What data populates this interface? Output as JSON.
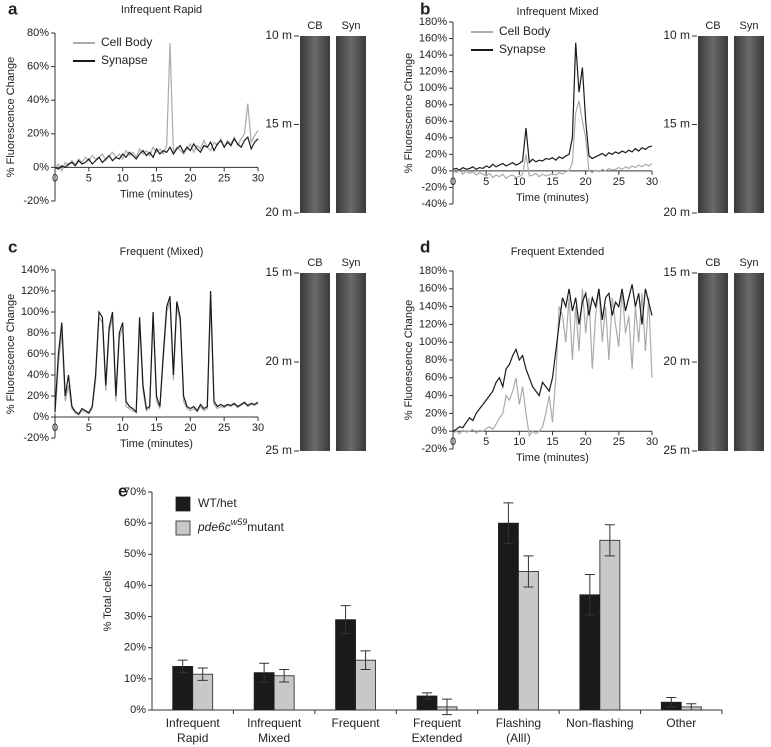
{
  "chart_data": [
    {
      "type": "line",
      "panel_label": "a",
      "title": "Infrequent Rapid",
      "y_label": "% Fluorescence Change",
      "x_label": "Time (minutes)",
      "x": [
        0,
        0.5,
        1,
        1.5,
        2,
        2.5,
        3,
        3.5,
        4,
        4.5,
        5,
        5.5,
        6,
        6.5,
        7,
        7.5,
        8,
        8.5,
        9,
        9.5,
        10,
        10.5,
        11,
        11.5,
        12,
        12.5,
        13,
        13.5,
        14,
        14.5,
        15,
        15.5,
        16,
        16.5,
        17,
        17.5,
        18,
        18.5,
        19,
        19.5,
        20,
        20.5,
        21,
        21.5,
        22,
        22.5,
        23,
        23.5,
        24,
        24.5,
        25,
        25.5,
        26,
        26.5,
        27,
        27.5,
        28,
        28.5,
        29,
        29.5,
        30
      ],
      "xlim": [
        0,
        30
      ],
      "xticks": [
        0,
        5,
        10,
        15,
        20,
        25,
        30
      ],
      "ylim": [
        -20,
        80
      ],
      "yticks": [
        {
          "value": -20,
          "label": "-20%"
        },
        {
          "value": 0,
          "label": "0%"
        },
        {
          "value": 20,
          "label": "20%"
        },
        {
          "value": 40,
          "label": "40%"
        },
        {
          "value": 60,
          "label": "60%"
        },
        {
          "value": 80,
          "label": "80%"
        }
      ],
      "legend": "upper left",
      "series": [
        {
          "name": "Cell Body",
          "color": "#ababab",
          "values": [
            0,
            2,
            -2,
            3,
            1,
            4,
            2,
            5,
            3,
            6,
            4,
            7,
            5,
            6,
            8,
            4,
            7,
            9,
            6,
            8,
            5,
            10,
            7,
            9,
            6,
            11,
            8,
            10,
            7,
            12,
            9,
            11,
            8,
            13,
            74,
            9,
            12,
            10,
            8,
            11,
            14,
            9,
            13,
            11,
            16,
            12,
            10,
            15,
            13,
            17,
            12,
            16,
            14,
            18,
            13,
            17,
            20,
            38,
            15,
            19,
            22
          ]
        },
        {
          "name": "Synapse",
          "color": "#1a1a1a",
          "values": [
            0,
            -1,
            1,
            0,
            2,
            3,
            1,
            4,
            2,
            3,
            5,
            2,
            4,
            6,
            3,
            5,
            7,
            4,
            6,
            5,
            8,
            6,
            9,
            7,
            5,
            8,
            10,
            7,
            9,
            6,
            11,
            8,
            10,
            9,
            12,
            8,
            11,
            13,
            9,
            12,
            10,
            14,
            11,
            9,
            13,
            12,
            15,
            10,
            14,
            16,
            12,
            15,
            13,
            17,
            14,
            12,
            16,
            18,
            11,
            15,
            17
          ]
        }
      ],
      "kymograph": {
        "columns": [
          "CB",
          "Syn"
        ],
        "ylim": [
          10,
          20
        ],
        "yticks": [
          {
            "value": 10,
            "label": "10 m"
          },
          {
            "value": 15,
            "label": "15 m"
          },
          {
            "value": 20,
            "label": "20 m"
          }
        ]
      }
    },
    {
      "type": "line",
      "panel_label": "b",
      "title": "Infrequent Mixed",
      "y_label": "% Fluorescence Change",
      "x_label": "Time (minutes)",
      "x": [
        0,
        0.5,
        1,
        1.5,
        2,
        2.5,
        3,
        3.5,
        4,
        4.5,
        5,
        5.5,
        6,
        6.5,
        7,
        7.5,
        8,
        8.5,
        9,
        9.5,
        10,
        10.5,
        11,
        11.5,
        12,
        12.5,
        13,
        13.5,
        14,
        14.5,
        15,
        15.5,
        16,
        16.5,
        17,
        17.5,
        18,
        18.5,
        19,
        19.5,
        20,
        20.5,
        21,
        21.5,
        22,
        22.5,
        23,
        23.5,
        24,
        24.5,
        25,
        25.5,
        26,
        26.5,
        27,
        27.5,
        28,
        28.5,
        29,
        29.5,
        30
      ],
      "xlim": [
        0,
        30
      ],
      "xticks": [
        0,
        5,
        10,
        15,
        20,
        25,
        30
      ],
      "ylim": [
        -40,
        180
      ],
      "yticks": [
        {
          "value": -40,
          "label": "-40%"
        },
        {
          "value": -20,
          "label": "-20%"
        },
        {
          "value": 0,
          "label": "0%"
        },
        {
          "value": 20,
          "label": "20%"
        },
        {
          "value": 40,
          "label": "40%"
        },
        {
          "value": 60,
          "label": "60%"
        },
        {
          "value": 80,
          "label": "80%"
        },
        {
          "value": 100,
          "label": "100%"
        },
        {
          "value": 120,
          "label": "120%"
        },
        {
          "value": 140,
          "label": "140%"
        },
        {
          "value": 160,
          "label": "160%"
        },
        {
          "value": 180,
          "label": "180%"
        }
      ],
      "legend": "upper left",
      "series": [
        {
          "name": "Cell Body",
          "color": "#ababab",
          "values": [
            0,
            -2,
            1,
            -4,
            0,
            -3,
            -1,
            -5,
            -2,
            -4,
            -6,
            -3,
            -8,
            -5,
            -7,
            -4,
            -9,
            -6,
            -5,
            -8,
            -7,
            -4,
            20,
            -6,
            -5,
            -3,
            -7,
            -4,
            -6,
            -5,
            -3,
            -5,
            -2,
            -4,
            -1,
            0,
            10,
            70,
            85,
            60,
            40,
            0,
            -2,
            1,
            -1,
            2,
            0,
            3,
            1,
            2,
            4,
            2,
            5,
            3,
            6,
            4,
            7,
            5,
            8,
            6,
            9
          ]
        },
        {
          "name": "Synapse",
          "color": "#1a1a1a",
          "values": [
            2,
            3,
            1,
            4,
            2,
            3,
            5,
            2,
            4,
            3,
            6,
            4,
            8,
            5,
            7,
            9,
            6,
            8,
            10,
            7,
            9,
            12,
            52,
            10,
            14,
            11,
            13,
            12,
            15,
            14,
            16,
            13,
            17,
            15,
            18,
            20,
            40,
            155,
            95,
            125,
            60,
            18,
            15,
            17,
            19,
            21,
            18,
            22,
            20,
            23,
            21,
            24,
            22,
            25,
            23,
            27,
            24,
            28,
            26,
            29,
            30
          ]
        }
      ],
      "kymograph": {
        "columns": [
          "CB",
          "Syn"
        ],
        "ylim": [
          10,
          20
        ],
        "yticks": [
          {
            "value": 10,
            "label": "10 m"
          },
          {
            "value": 15,
            "label": "15 m"
          },
          {
            "value": 20,
            "label": "20 m"
          }
        ]
      }
    },
    {
      "type": "line",
      "panel_label": "c",
      "title": "Frequent (Mixed)",
      "y_label": "% Fluorescence Change",
      "x_label": "Time (minutes)",
      "x": [
        0,
        0.5,
        1,
        1.5,
        2,
        2.5,
        3,
        3.5,
        4,
        4.5,
        5,
        5.5,
        6,
        6.5,
        7,
        7.5,
        8,
        8.5,
        9,
        9.5,
        10,
        10.5,
        11,
        11.5,
        12,
        12.5,
        13,
        13.5,
        14,
        14.5,
        15,
        15.5,
        16,
        16.5,
        17,
        17.5,
        18,
        18.5,
        19,
        19.5,
        20,
        20.5,
        21,
        21.5,
        22,
        22.5,
        23,
        23.5,
        24,
        24.5,
        25,
        25.5,
        26,
        26.5,
        27,
        27.5,
        28,
        28.5,
        29,
        29.5,
        30
      ],
      "xlim": [
        0,
        30
      ],
      "xticks": [
        0,
        5,
        10,
        15,
        20,
        25,
        30
      ],
      "ylim": [
        -20,
        140
      ],
      "yticks": [
        {
          "value": -20,
          "label": "-20%"
        },
        {
          "value": 0,
          "label": "0%"
        },
        {
          "value": 20,
          "label": "20%"
        },
        {
          "value": 40,
          "label": "40%"
        },
        {
          "value": 60,
          "label": "60%"
        },
        {
          "value": 80,
          "label": "80%"
        },
        {
          "value": 100,
          "label": "100%"
        },
        {
          "value": 120,
          "label": "120%"
        },
        {
          "value": 140,
          "label": "140%"
        }
      ],
      "series": [
        {
          "color": "#ababab",
          "values": [
            3,
            50,
            80,
            15,
            30,
            8,
            4,
            2,
            6,
            5,
            3,
            8,
            35,
            95,
            90,
            25,
            80,
            95,
            15,
            75,
            85,
            10,
            8,
            6,
            4,
            90,
            25,
            6,
            8,
            95,
            15,
            8,
            55,
            100,
            110,
            35,
            105,
            90,
            15,
            8,
            6,
            8,
            5,
            10,
            6,
            8,
            110,
            12,
            8,
            10,
            9,
            11,
            10,
            12,
            9,
            11,
            13,
            10,
            12,
            11,
            13
          ]
        },
        {
          "color": "#1a1a1a",
          "values": [
            5,
            60,
            90,
            20,
            40,
            10,
            5,
            3,
            8,
            6,
            4,
            10,
            40,
            100,
            95,
            30,
            85,
            100,
            20,
            80,
            90,
            15,
            10,
            8,
            5,
            95,
            30,
            8,
            10,
            100,
            20,
            10,
            60,
            105,
            115,
            40,
            110,
            95,
            20,
            10,
            8,
            10,
            6,
            12,
            8,
            10,
            120,
            15,
            10,
            12,
            10,
            12,
            11,
            13,
            10,
            12,
            14,
            11,
            13,
            12,
            14
          ]
        }
      ],
      "kymograph": {
        "columns": [
          "CB",
          "Syn"
        ],
        "ylim": [
          15,
          25
        ],
        "yticks": [
          {
            "value": 15,
            "label": "15 m"
          },
          {
            "value": 20,
            "label": "20 m"
          },
          {
            "value": 25,
            "label": "25 m"
          }
        ]
      }
    },
    {
      "type": "line",
      "panel_label": "d",
      "title": "Frequent Extended",
      "y_label": "% Fluorescence Change",
      "x_label": "Time (minutes)",
      "x": [
        0,
        0.5,
        1,
        1.5,
        2,
        2.5,
        3,
        3.5,
        4,
        4.5,
        5,
        5.5,
        6,
        6.5,
        7,
        7.5,
        8,
        8.5,
        9,
        9.5,
        10,
        10.5,
        11,
        11.5,
        12,
        12.5,
        13,
        13.5,
        14,
        14.5,
        15,
        15.5,
        16,
        16.5,
        17,
        17.5,
        18,
        18.5,
        19,
        19.5,
        20,
        20.5,
        21,
        21.5,
        22,
        22.5,
        23,
        23.5,
        24,
        24.5,
        25,
        25.5,
        26,
        26.5,
        27,
        27.5,
        28,
        28.5,
        29,
        29.5,
        30
      ],
      "xlim": [
        0,
        30
      ],
      "xticks": [
        0,
        5,
        10,
        15,
        20,
        25,
        30
      ],
      "ylim": [
        -20,
        180
      ],
      "yticks": [
        {
          "value": -20,
          "label": "-20%"
        },
        {
          "value": 0,
          "label": "0%"
        },
        {
          "value": 20,
          "label": "20%"
        },
        {
          "value": 40,
          "label": "40%"
        },
        {
          "value": 60,
          "label": "60%"
        },
        {
          "value": 80,
          "label": "80%"
        },
        {
          "value": 100,
          "label": "100%"
        },
        {
          "value": 120,
          "label": "120%"
        },
        {
          "value": 140,
          "label": "140%"
        },
        {
          "value": 160,
          "label": "160%"
        },
        {
          "value": 180,
          "label": "180%"
        }
      ],
      "series": [
        {
          "color": "#ababab",
          "values": [
            -2,
            0,
            -3,
            1,
            -1,
            0,
            2,
            -2,
            1,
            0,
            3,
            5,
            2,
            8,
            15,
            20,
            40,
            35,
            45,
            60,
            30,
            50,
            20,
            -5,
            0,
            -3,
            0,
            5,
            20,
            40,
            10,
            60,
            140,
            130,
            100,
            150,
            80,
            140,
            90,
            160,
            110,
            150,
            70,
            130,
            160,
            100,
            140,
            80,
            150,
            120,
            95,
            160,
            110,
            130,
            70,
            140,
            100,
            155,
            90,
            150,
            60
          ]
        },
        {
          "color": "#1a1a1a",
          "values": [
            0,
            2,
            5,
            4,
            10,
            15,
            12,
            20,
            25,
            30,
            35,
            40,
            45,
            55,
            60,
            50,
            70,
            75,
            85,
            92,
            80,
            85,
            70,
            60,
            50,
            45,
            40,
            55,
            50,
            45,
            60,
            90,
            120,
            150,
            140,
            160,
            135,
            150,
            120,
            145,
            155,
            130,
            150,
            140,
            160,
            125,
            150,
            155,
            130,
            145,
            140,
            160,
            135,
            150,
            165,
            140,
            155,
            120,
            160,
            145,
            130
          ]
        }
      ],
      "kymograph": {
        "columns": [
          "CB",
          "Syn"
        ],
        "ylim": [
          15,
          25
        ],
        "yticks": [
          {
            "value": 15,
            "label": "15 m"
          },
          {
            "value": 20,
            "label": "20 m"
          },
          {
            "value": 25,
            "label": "25 m"
          }
        ]
      }
    },
    {
      "type": "bar",
      "panel_label": "e",
      "y_label": "% Total cells",
      "categories": [
        [
          "Infrequent",
          "Rapid"
        ],
        [
          "Infrequent",
          "Mixed"
        ],
        [
          "Frequent"
        ],
        [
          "Frequent",
          "Extended"
        ],
        [
          "Flashing",
          "(AllI)"
        ],
        [
          "Non-flashing"
        ],
        [
          "Other"
        ]
      ],
      "ylim": [
        0,
        70
      ],
      "yticks": [
        {
          "value": 0,
          "label": "0%"
        },
        {
          "value": 10,
          "label": "10%"
        },
        {
          "value": 20,
          "label": "20%"
        },
        {
          "value": 30,
          "label": "30%"
        },
        {
          "value": 40,
          "label": "40%"
        },
        {
          "value": 50,
          "label": "50%"
        },
        {
          "value": 60,
          "label": "60%"
        },
        {
          "value": 70,
          "label": "70%"
        }
      ],
      "legend": "upper left",
      "series": [
        {
          "name": [
            "WT/het"
          ],
          "color": "#1a1a1a",
          "values": [
            14,
            12,
            29,
            4.5,
            60,
            37,
            2.5
          ],
          "errors": [
            2,
            3,
            4.5,
            1,
            6.5,
            6.5,
            1.5
          ]
        },
        {
          "name": [
            "pde6c",
            "w59",
            "mutant"
          ],
          "color": "#c8c8c8",
          "values": [
            11.5,
            11,
            16,
            1,
            44.5,
            54.5,
            1
          ],
          "errors": [
            2,
            2,
            3,
            2.5,
            5,
            5,
            1
          ]
        }
      ]
    }
  ]
}
